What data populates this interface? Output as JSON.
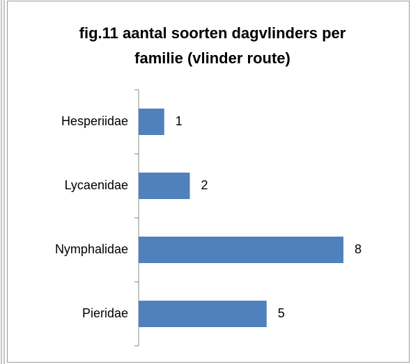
{
  "chart_data": {
    "type": "bar",
    "orientation": "horizontal",
    "title": "fig.11 aantal soorten dagvlinders per familie (vlinder route)",
    "categories": [
      "Hesperiidae",
      "Lycaenidae",
      "Nymphalidae",
      "Pieridae"
    ],
    "values": [
      1,
      2,
      8,
      5
    ],
    "color": "#4f81bd"
  }
}
